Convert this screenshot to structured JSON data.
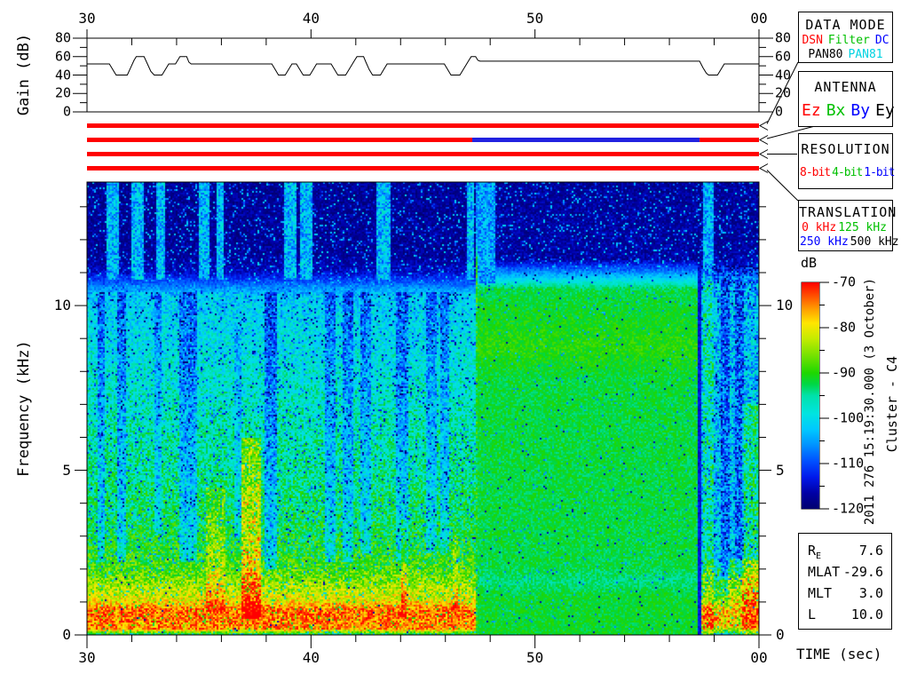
{
  "titles": {
    "gain_ylabel": "Gain (dB)",
    "freq_ylabel": "Frequency (kHz)",
    "time_axis_title": "TIME (sec)",
    "colorbar_unit": "dB",
    "timestamp_vertical": "2011 276 15:19:30.000 (3 October)",
    "spacecraft_vertical": "Cluster - C4"
  },
  "axes": {
    "time": {
      "major": [
        {
          "t": 30,
          "label": "30"
        },
        {
          "t": 40,
          "label": "40"
        },
        {
          "t": 50,
          "label": "50"
        },
        {
          "t": 60,
          "label": "00"
        }
      ],
      "minor_step_sec": 2
    },
    "gain": {
      "major": [
        {
          "db": 0,
          "label": "0"
        },
        {
          "db": 20,
          "label": "20"
        },
        {
          "db": 40,
          "label": "40"
        },
        {
          "db": 60,
          "label": "60"
        },
        {
          "db": 80,
          "label": "80"
        }
      ],
      "minor": [
        10,
        30,
        50,
        70
      ]
    },
    "freq": {
      "major": [
        {
          "khz": 0,
          "label": "0"
        },
        {
          "khz": 5,
          "label": "5"
        },
        {
          "khz": 10,
          "label": "10"
        }
      ],
      "minor_step_khz": 1
    },
    "colorbar": {
      "major": [
        {
          "db": -70,
          "label": "-70"
        },
        {
          "db": -80,
          "label": "-80"
        },
        {
          "db": -90,
          "label": "-90"
        },
        {
          "db": -100,
          "label": "-100"
        },
        {
          "db": -110,
          "label": "-110"
        },
        {
          "db": -120,
          "label": "-120"
        }
      ],
      "minor_step_db": 5
    }
  },
  "legend_boxes": [
    {
      "id": "data-mode",
      "title": "DATA MODE",
      "rows": [
        [
          {
            "text": "DSN",
            "color": "#ff0000"
          },
          {
            "text": "Filter",
            "color": "#00c000"
          },
          {
            "text": "DC",
            "color": "#0000ff"
          }
        ],
        [
          {
            "text": "PAN80",
            "color": "#000000"
          },
          {
            "text": "PAN81",
            "color": "#00d2e1"
          }
        ]
      ]
    },
    {
      "id": "antenna",
      "title": "ANTENNA",
      "rows": [
        [
          {
            "text": "Ez",
            "color": "#ff0000"
          },
          {
            "text": "Bx",
            "color": "#00c000"
          },
          {
            "text": "By",
            "color": "#0000ff"
          },
          {
            "text": "Ey",
            "color": "#000000"
          }
        ]
      ]
    },
    {
      "id": "resolution",
      "title": "RESOLUTION",
      "rows": [
        [
          {
            "text": "8-bit",
            "color": "#ff0000"
          },
          {
            "text": "4-bit",
            "color": "#00c000"
          },
          {
            "text": "1-bit",
            "color": "#0000ff"
          }
        ]
      ]
    },
    {
      "id": "translation",
      "title": "TRANSLATION",
      "rows": [
        [
          {
            "text": "0 kHz",
            "color": "#ff0000"
          },
          {
            "text": "125 kHz",
            "color": "#00c000"
          }
        ],
        [
          {
            "text": "250 kHz",
            "color": "#0000ff"
          },
          {
            "text": "500 kHz",
            "color": "#000000"
          }
        ]
      ]
    }
  ],
  "status_bars": [
    {
      "name": "data-mode-bar",
      "meaning": "DSN",
      "segments": [
        {
          "t0": 30,
          "t1": 60,
          "color": "#ff0000"
        }
      ]
    },
    {
      "name": "antenna-bar",
      "meaning": "Ez / By / Ez",
      "segments": [
        {
          "t0": 30,
          "t1": 47.2,
          "color": "#ff0000"
        },
        {
          "t0": 47.2,
          "t1": 57.35,
          "color": "#2222e0"
        },
        {
          "t0": 57.35,
          "t1": 60,
          "color": "#ff0000"
        }
      ]
    },
    {
      "name": "resolution-bar",
      "meaning": "8-bit",
      "segments": [
        {
          "t0": 30,
          "t1": 60,
          "color": "#ff0000"
        }
      ]
    },
    {
      "name": "translation-bar",
      "meaning": "0 kHz",
      "segments": [
        {
          "t0": 30,
          "t1": 60,
          "color": "#ff0000"
        }
      ]
    }
  ],
  "ephemeris": {
    "rows": [
      {
        "label": "R",
        "sub": "E",
        "value": "7.6"
      },
      {
        "label": "MLAT",
        "sub": "",
        "value": "-29.6"
      },
      {
        "label": "MLT",
        "sub": "",
        "value": "3.0"
      },
      {
        "label": "L",
        "sub": "",
        "value": "10.0"
      }
    ]
  },
  "colorbar": {
    "unit": "dB",
    "min_db": -120,
    "max_db": -70
  },
  "chart_data": [
    {
      "type": "line",
      "title": "Receiver gain vs time",
      "x_label": "TIME (sec)",
      "x_range": [
        30,
        60
      ],
      "x_tick_labels": [
        "30",
        "40",
        "50",
        "00"
      ],
      "y_label": "Gain (dB)",
      "y_range": [
        0,
        80
      ],
      "y_ticks": [
        0,
        20,
        40,
        60,
        80
      ],
      "points_t_db": [
        [
          30,
          52
        ],
        [
          31.0,
          52
        ],
        [
          31.15,
          46
        ],
        [
          31.3,
          40
        ],
        [
          31.8,
          40
        ],
        [
          31.95,
          48
        ],
        [
          32.1,
          56
        ],
        [
          32.2,
          60
        ],
        [
          32.55,
          60
        ],
        [
          32.7,
          52
        ],
        [
          32.85,
          44
        ],
        [
          33.0,
          40
        ],
        [
          33.35,
          40
        ],
        [
          33.5,
          46
        ],
        [
          33.65,
          52
        ],
        [
          33.95,
          52
        ],
        [
          34.05,
          56
        ],
        [
          34.15,
          60
        ],
        [
          34.45,
          60
        ],
        [
          34.55,
          54
        ],
        [
          34.65,
          52
        ],
        [
          38.25,
          52
        ],
        [
          38.4,
          46
        ],
        [
          38.55,
          40
        ],
        [
          38.85,
          40
        ],
        [
          39.0,
          46
        ],
        [
          39.15,
          52
        ],
        [
          39.35,
          52
        ],
        [
          39.5,
          46
        ],
        [
          39.65,
          40
        ],
        [
          39.95,
          40
        ],
        [
          40.1,
          46
        ],
        [
          40.25,
          52
        ],
        [
          40.9,
          52
        ],
        [
          41.05,
          46
        ],
        [
          41.2,
          40
        ],
        [
          41.55,
          40
        ],
        [
          41.7,
          46
        ],
        [
          41.85,
          52
        ],
        [
          41.95,
          56
        ],
        [
          42.05,
          60
        ],
        [
          42.35,
          60
        ],
        [
          42.45,
          54
        ],
        [
          42.6,
          46
        ],
        [
          42.75,
          40
        ],
        [
          43.1,
          40
        ],
        [
          43.25,
          46
        ],
        [
          43.4,
          52
        ],
        [
          45.95,
          52
        ],
        [
          46.1,
          46
        ],
        [
          46.25,
          40
        ],
        [
          46.65,
          40
        ],
        [
          46.8,
          46
        ],
        [
          46.95,
          52
        ],
        [
          47.05,
          56
        ],
        [
          47.15,
          60
        ],
        [
          47.35,
          60
        ],
        [
          47.45,
          56
        ],
        [
          47.55,
          55
        ],
        [
          57.35,
          55
        ],
        [
          57.5,
          48
        ],
        [
          57.65,
          42
        ],
        [
          57.75,
          40
        ],
        [
          58.15,
          40
        ],
        [
          58.3,
          46
        ],
        [
          58.45,
          52
        ],
        [
          60,
          52
        ]
      ]
    },
    {
      "type": "heatmap",
      "title": "Wideband E-field spectrogram",
      "x_label": "TIME (sec)",
      "x_range_sec": [
        30,
        60
      ],
      "x_tick_labels": [
        "30",
        "40",
        "50",
        "00"
      ],
      "y_label": "Frequency (kHz)",
      "y_range_khz": [
        0,
        13.75
      ],
      "z_label": "dB",
      "z_range_db": [
        -120,
        -70
      ],
      "sections": [
        {
          "name": "burst-noisy",
          "t0": 30,
          "t1": 47.32,
          "noise": 0.11,
          "dot_p": 0.06,
          "navy_above": 10.4,
          "profile": [
            [
              0,
              0.5
            ],
            [
              0.18,
              0.9
            ],
            [
              0.75,
              0.92
            ],
            [
              1.1,
              0.78
            ],
            [
              2,
              0.63
            ],
            [
              3,
              0.56
            ],
            [
              5,
              0.5
            ],
            [
              7,
              0.46
            ],
            [
              9,
              0.41
            ],
            [
              10.3,
              0.37
            ],
            [
              11.0,
              0.1
            ],
            [
              11.5,
              0.055
            ],
            [
              13.75,
              0.05
            ]
          ]
        },
        {
          "name": "marker-line",
          "t0": 47.32,
          "t1": 47.47,
          "noise": 0.1,
          "dot_p": 0.02,
          "navy_above": 99,
          "profile": [
            [
              0,
              0.58
            ],
            [
              11.5,
              0.58
            ],
            [
              12,
              0.3
            ],
            [
              13.75,
              0.28
            ]
          ]
        },
        {
          "name": "smooth-green",
          "t0": 47.47,
          "t1": 57.28,
          "noise": 0.05,
          "dot_p": 0.02,
          "navy_above": 11.0,
          "profile": [
            [
              0,
              0.57
            ],
            [
              1.2,
              0.565
            ],
            [
              1.6,
              0.52
            ],
            [
              2.1,
              0.555
            ],
            [
              7.8,
              0.56
            ],
            [
              8.7,
              0.605
            ],
            [
              9.6,
              0.58
            ],
            [
              10.5,
              0.55
            ],
            [
              11.0,
              0.28
            ],
            [
              11.4,
              0.065
            ],
            [
              13.75,
              0.055
            ]
          ]
        },
        {
          "name": "gap",
          "t0": 57.28,
          "t1": 57.44,
          "noise": 0.05,
          "dot_p": 0,
          "navy_above": 11.2,
          "profile": [
            [
              0,
              0.13
            ],
            [
              11,
              0.12
            ],
            [
              11.4,
              0.06
            ],
            [
              13.75,
              0.05
            ]
          ]
        },
        {
          "name": "post-noisy",
          "t0": 57.44,
          "t1": 60.01,
          "noise": 0.16,
          "dot_p": 0.05,
          "navy_above": 11.2,
          "profile": [
            [
              0,
              0.5
            ],
            [
              0.3,
              0.85
            ],
            [
              0.8,
              0.8
            ],
            [
              1.1,
              0.62
            ],
            [
              1.9,
              0.5
            ],
            [
              2.4,
              0.37
            ],
            [
              9,
              0.35
            ],
            [
              10.6,
              0.33
            ],
            [
              11.2,
              0.1
            ],
            [
              11.6,
              0.06
            ],
            [
              13.75,
              0.055
            ]
          ]
        }
      ],
      "features": {
        "dark_streaks": [
          {
            "t0": 30.45,
            "t1": 30.8,
            "f0": 2.2,
            "f1": 10.4,
            "dv": -0.15
          },
          {
            "t0": 31.35,
            "t1": 31.75,
            "f0": 2.2,
            "f1": 10.4,
            "dv": -0.15
          },
          {
            "t0": 33.05,
            "t1": 33.35,
            "f0": 3.0,
            "f1": 10.4,
            "dv": -0.12
          },
          {
            "t0": 34.1,
            "t1": 34.9,
            "f0": 2.2,
            "f1": 10.4,
            "dv": -0.15
          },
          {
            "t0": 36.55,
            "t1": 36.9,
            "f0": 3.0,
            "f1": 9.5,
            "dv": -0.1
          },
          {
            "t0": 37.95,
            "t1": 38.5,
            "f0": 2.0,
            "f1": 10.4,
            "dv": -0.18
          },
          {
            "t0": 40.6,
            "t1": 41.1,
            "f0": 2.2,
            "f1": 10.4,
            "dv": -0.15
          },
          {
            "t0": 41.4,
            "t1": 41.9,
            "f0": 2.2,
            "f1": 10.4,
            "dv": -0.15
          },
          {
            "t0": 42.2,
            "t1": 42.7,
            "f0": 2.5,
            "f1": 10.4,
            "dv": -0.14
          },
          {
            "t0": 43.8,
            "t1": 44.35,
            "f0": 2.2,
            "f1": 10.4,
            "dv": -0.15
          },
          {
            "t0": 45.15,
            "t1": 45.6,
            "f0": 2.5,
            "f1": 10.4,
            "dv": -0.13
          },
          {
            "t0": 45.8,
            "t1": 46.15,
            "f0": 2.5,
            "f1": 10.4,
            "dv": -0.13
          }
        ],
        "bright_columns": [
          {
            "t0": 35.35,
            "t1": 36.2,
            "f0": 0.7,
            "f1": 4.5,
            "dv": 0.1
          },
          {
            "t0": 36.9,
            "t1": 37.75,
            "f0": 0.5,
            "f1": 6.0,
            "dv": 0.2
          },
          {
            "t0": 44.0,
            "t1": 44.3,
            "f0": 0.5,
            "f1": 3.5,
            "dv": 0.12
          },
          {
            "t0": 46.3,
            "t1": 46.6,
            "f0": 0.7,
            "f1": 3.0,
            "dv": 0.08
          }
        ],
        "top_bright_streaks": [
          {
            "t0": 30.85,
            "t1": 31.45
          },
          {
            "t0": 32.0,
            "t1": 32.55
          },
          {
            "t0": 33.1,
            "t1": 33.5
          },
          {
            "t0": 35.0,
            "t1": 35.45
          },
          {
            "t0": 35.75,
            "t1": 36.1
          },
          {
            "t0": 38.8,
            "t1": 39.35
          },
          {
            "t0": 39.5,
            "t1": 40.05
          },
          {
            "t0": 42.95,
            "t1": 43.55
          },
          {
            "t0": 46.95,
            "t1": 47.25
          }
        ],
        "c_top_bright": {
          "t0": 47.47,
          "t1": 48.25
        },
        "post_bright_column": {
          "t0": 57.5,
          "t1": 57.95,
          "dv": 0.12
        },
        "post_dark_streaks": [
          {
            "t0": 58.3,
            "t1": 58.7
          },
          {
            "t0": 58.95,
            "t1": 59.35
          }
        ],
        "post_green_wedge": {
          "t0": 59.25,
          "f1": 7,
          "dv": 0.14
        },
        "post_warm_band": {
          "t0": 58.6,
          "f0": 0.9,
          "f1": 2.3,
          "dv": 0.12
        }
      }
    }
  ]
}
